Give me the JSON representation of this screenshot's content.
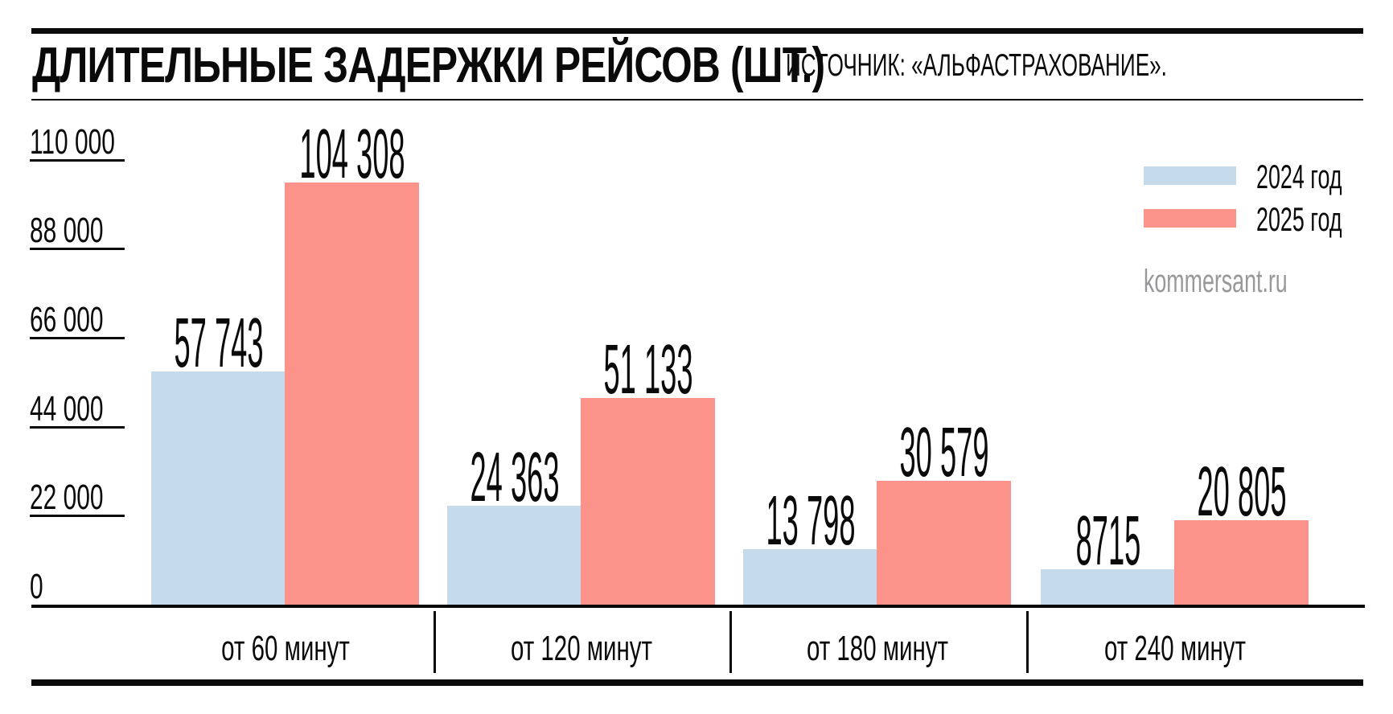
{
  "header": {
    "title": "ДЛИТЕЛЬНЫЕ ЗАДЕРЖКИ РЕЙСОВ (ШТ.)",
    "source": "ИСТОЧНИК: «АЛЬФАСТРАХОВАНИЕ».",
    "watermark": "kommersant.ru"
  },
  "legend": [
    {
      "label": "2024 год",
      "color": "#c5dbec"
    },
    {
      "label": "2025 год",
      "color": "#fc938b"
    }
  ],
  "chart_data": {
    "type": "bar",
    "title": "ДЛИТЕЛЬНЫЕ ЗАДЕРЖКИ РЕЙСОВ (ШТ.)",
    "source": "ИСТОЧНИК: «АЛЬФАСТРАХОВАНИЕ».",
    "categories": [
      "от 60 минут",
      "от 120 минут",
      "от 180 минут",
      "от 240 минут"
    ],
    "series": [
      {
        "name": "2024 год",
        "color": "#c5dbec",
        "values": [
          57743,
          24363,
          13798,
          8715
        ],
        "labels": [
          "57 743",
          "24 363",
          "13 798",
          "8715"
        ]
      },
      {
        "name": "2025 год",
        "color": "#fc938b",
        "values": [
          104308,
          51133,
          30579,
          20805
        ],
        "labels": [
          "104 308",
          "51 133",
          "30 579",
          "20 805"
        ]
      }
    ],
    "y_ticks": [
      0,
      22000,
      44000,
      66000,
      88000,
      110000
    ],
    "y_tick_labels": [
      "0",
      "22 000",
      "44 000",
      "66 000",
      "88 000",
      "110 000"
    ],
    "ylim": [
      0,
      110000
    ],
    "grid": false,
    "legend_position": "top-right",
    "watermark": "kommersant.ru"
  }
}
